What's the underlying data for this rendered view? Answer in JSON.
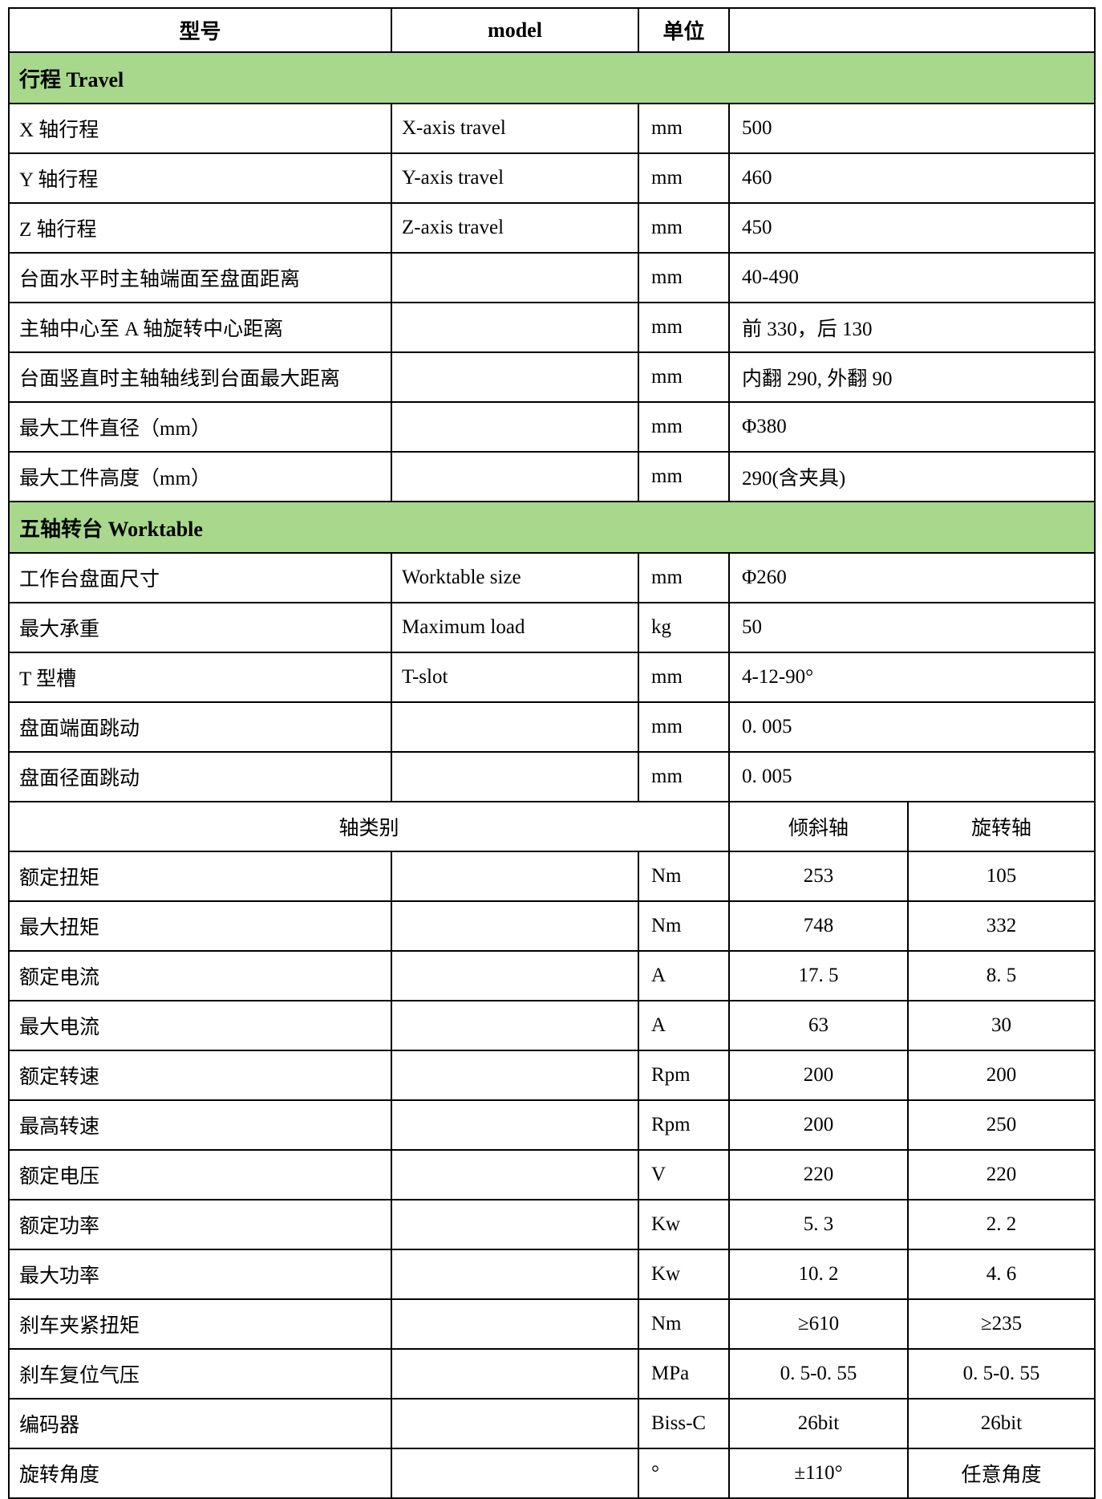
{
  "colors": {
    "section_green": "#a7d88c",
    "border": "#000000",
    "background": "#ffffff",
    "text": "#000000"
  },
  "header": {
    "col_model_cn": "型号",
    "col_model_en": "model",
    "col_unit": "单位",
    "col_value": ""
  },
  "sections": [
    {
      "title": "行程 Travel"
    },
    {
      "title": "五轴转台 Worktable"
    }
  ],
  "travel_rows": [
    {
      "name": "X 轴行程",
      "model": "X-axis travel",
      "unit": "mm",
      "value": "500"
    },
    {
      "name": "Y 轴行程",
      "model": "Y-axis travel",
      "unit": "mm",
      "value": "460"
    },
    {
      "name": "Z 轴行程",
      "model": "Z-axis travel",
      "unit": "mm",
      "value": "450"
    },
    {
      "name": "台面水平时主轴端面至盘面距离",
      "model": "",
      "unit": "mm",
      "value": "40-490"
    },
    {
      "name": "主轴中心至 A 轴旋转中心距离",
      "model": "",
      "unit": "mm",
      "value": "前 330，后 130"
    },
    {
      "name": "台面竖直时主轴轴线到台面最大距离",
      "model": "",
      "unit": "mm",
      "value": "内翻 290, 外翻 90"
    },
    {
      "name": "最大工件直径（mm）",
      "model": "",
      "unit": "mm",
      "value": "Φ380"
    },
    {
      "name": "最大工件高度（mm）",
      "model": "",
      "unit": "mm",
      "value": "290(含夹具)"
    }
  ],
  "worktable_rows": [
    {
      "name": "工作台盘面尺寸",
      "model": "Worktable size",
      "unit": "mm",
      "value": "Φ260"
    },
    {
      "name": "最大承重",
      "model": "Maximum load",
      "unit": "kg",
      "value": "50"
    },
    {
      "name": "T 型槽",
      "model": "T-slot",
      "unit": "mm",
      "value": "4-12-90°"
    },
    {
      "name": "盘面端面跳动",
      "model": "",
      "unit": "mm",
      "value": "0. 005"
    },
    {
      "name": "盘面径面跳动",
      "model": "",
      "unit": "mm",
      "value": "0. 005"
    }
  ],
  "axis_header": {
    "label": "轴类别",
    "tilt": "倾斜轴",
    "rotary": "旋转轴"
  },
  "axis_rows": [
    {
      "name": "额定扭矩",
      "unit": "Nm",
      "tilt": "253",
      "rotary": "105"
    },
    {
      "name": "最大扭矩",
      "unit": "Nm",
      "tilt": "748",
      "rotary": "332"
    },
    {
      "name": "额定电流",
      "unit": "A",
      "tilt": "17. 5",
      "rotary": "8. 5"
    },
    {
      "name": "最大电流",
      "unit": "A",
      "tilt": "63",
      "rotary": "30"
    },
    {
      "name": "额定转速",
      "unit": "Rpm",
      "tilt": "200",
      "rotary": "200"
    },
    {
      "name": "最高转速",
      "unit": "Rpm",
      "tilt": "200",
      "rotary": "250"
    },
    {
      "name": "额定电压",
      "unit": "V",
      "tilt": "220",
      "rotary": "220"
    },
    {
      "name": "额定功率",
      "unit": "Kw",
      "tilt": "5. 3",
      "rotary": "2. 2"
    },
    {
      "name": "最大功率",
      "unit": "Kw",
      "tilt": "10. 2",
      "rotary": "4. 6"
    },
    {
      "name": "刹车夹紧扭矩",
      "unit": "Nm",
      "tilt": "≥610",
      "rotary": "≥235"
    },
    {
      "name": "刹车复位气压",
      "unit": "MPa",
      "tilt": "0. 5-0. 55",
      "rotary": "0. 5-0. 55"
    },
    {
      "name": "编码器",
      "unit": "Biss-C",
      "tilt": "26bit",
      "rotary": "26bit"
    },
    {
      "name": "旋转角度",
      "unit": "°",
      "tilt": "±110°",
      "rotary": "任意角度"
    }
  ]
}
